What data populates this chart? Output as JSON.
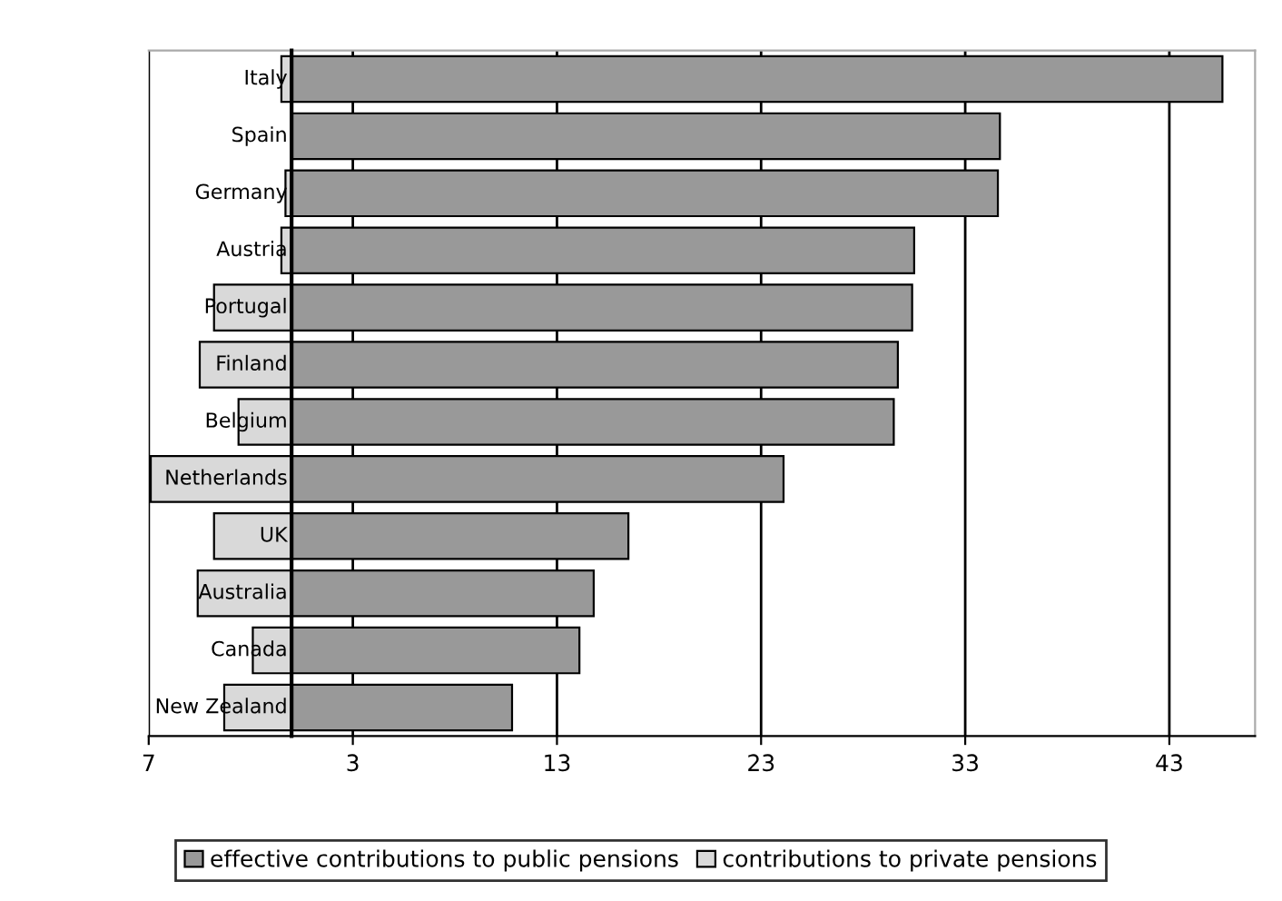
{
  "chart_data": {
    "type": "bar",
    "orientation": "horizontal",
    "categories": [
      "Italy",
      "Spain",
      "Germany",
      "Austria",
      "Portugal",
      "Finland",
      "Belgium",
      "Netherlands",
      "UK",
      "Australia",
      "Canada",
      "New Zealand"
    ],
    "series": [
      {
        "name": "effective contributions to public pensions",
        "color": "#999999",
        "values": [
          45.6,
          34.7,
          34.6,
          30.5,
          30.4,
          29.7,
          29.5,
          24.1,
          16.5,
          14.8,
          14.1,
          10.8
        ]
      },
      {
        "name": "contributions to private pensions",
        "color": "#d9d9d9",
        "values": [
          -0.5,
          null,
          -0.3,
          -0.5,
          -3.8,
          -4.5,
          -2.6,
          -6.9,
          -3.8,
          -4.6,
          -1.9,
          -3.3
        ]
      }
    ],
    "xlim": [
      -7,
      47.2
    ],
    "xticks": [
      {
        "value": -7,
        "label": "7"
      },
      3,
      13,
      23,
      33,
      43
    ],
    "grid": "x",
    "stacked": true,
    "legend": "bottom"
  }
}
